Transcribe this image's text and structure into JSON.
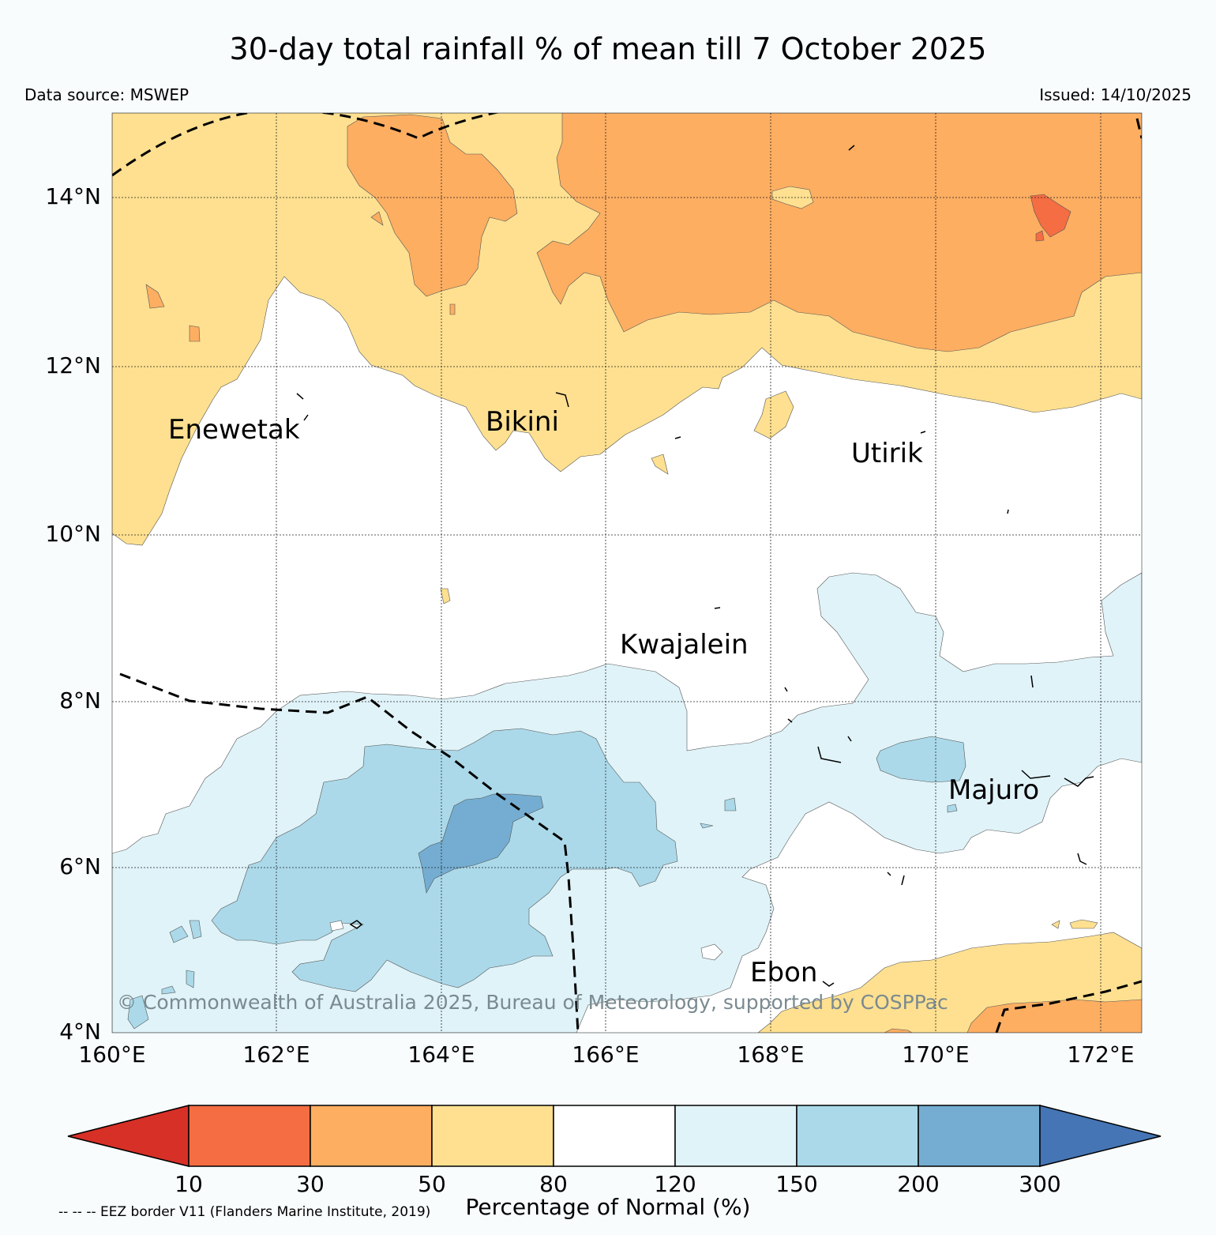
{
  "title": "30-day total rainfall % of mean till 7 October 2025",
  "data_source": "Data source: MSWEP",
  "issued": "Issued: 14/10/2025",
  "axes": {
    "lat_labels": [
      "14°N",
      "12°N",
      "10°N",
      "8°N",
      "6°N",
      "4°N"
    ],
    "lon_labels": [
      "160°E",
      "162°E",
      "164°E",
      "166°E",
      "168°E",
      "170°E",
      "172°E"
    ]
  },
  "places": [
    "Enewetak",
    "Bikini",
    "Utirik",
    "Kwajalein",
    "Majuro",
    "Ebon"
  ],
  "copyright": "© Commonwealth of Australia 2025, Bureau of Meteorology, supported by COSPPac",
  "colorbar": {
    "ticks": [
      "10",
      "30",
      "50",
      "80",
      "120",
      "150",
      "200",
      "300"
    ],
    "label": "Percentage of Normal (%)",
    "colors": [
      "#d73027",
      "#f46d43",
      "#fdae61",
      "#fee090",
      "#ffffff",
      "#e0f3f8",
      "#abd9e9",
      "#74add1",
      "#4575b4"
    ]
  },
  "eez_note": "-- -- -- EEZ border V11 (Flanders Marine Institute, 2019)"
}
